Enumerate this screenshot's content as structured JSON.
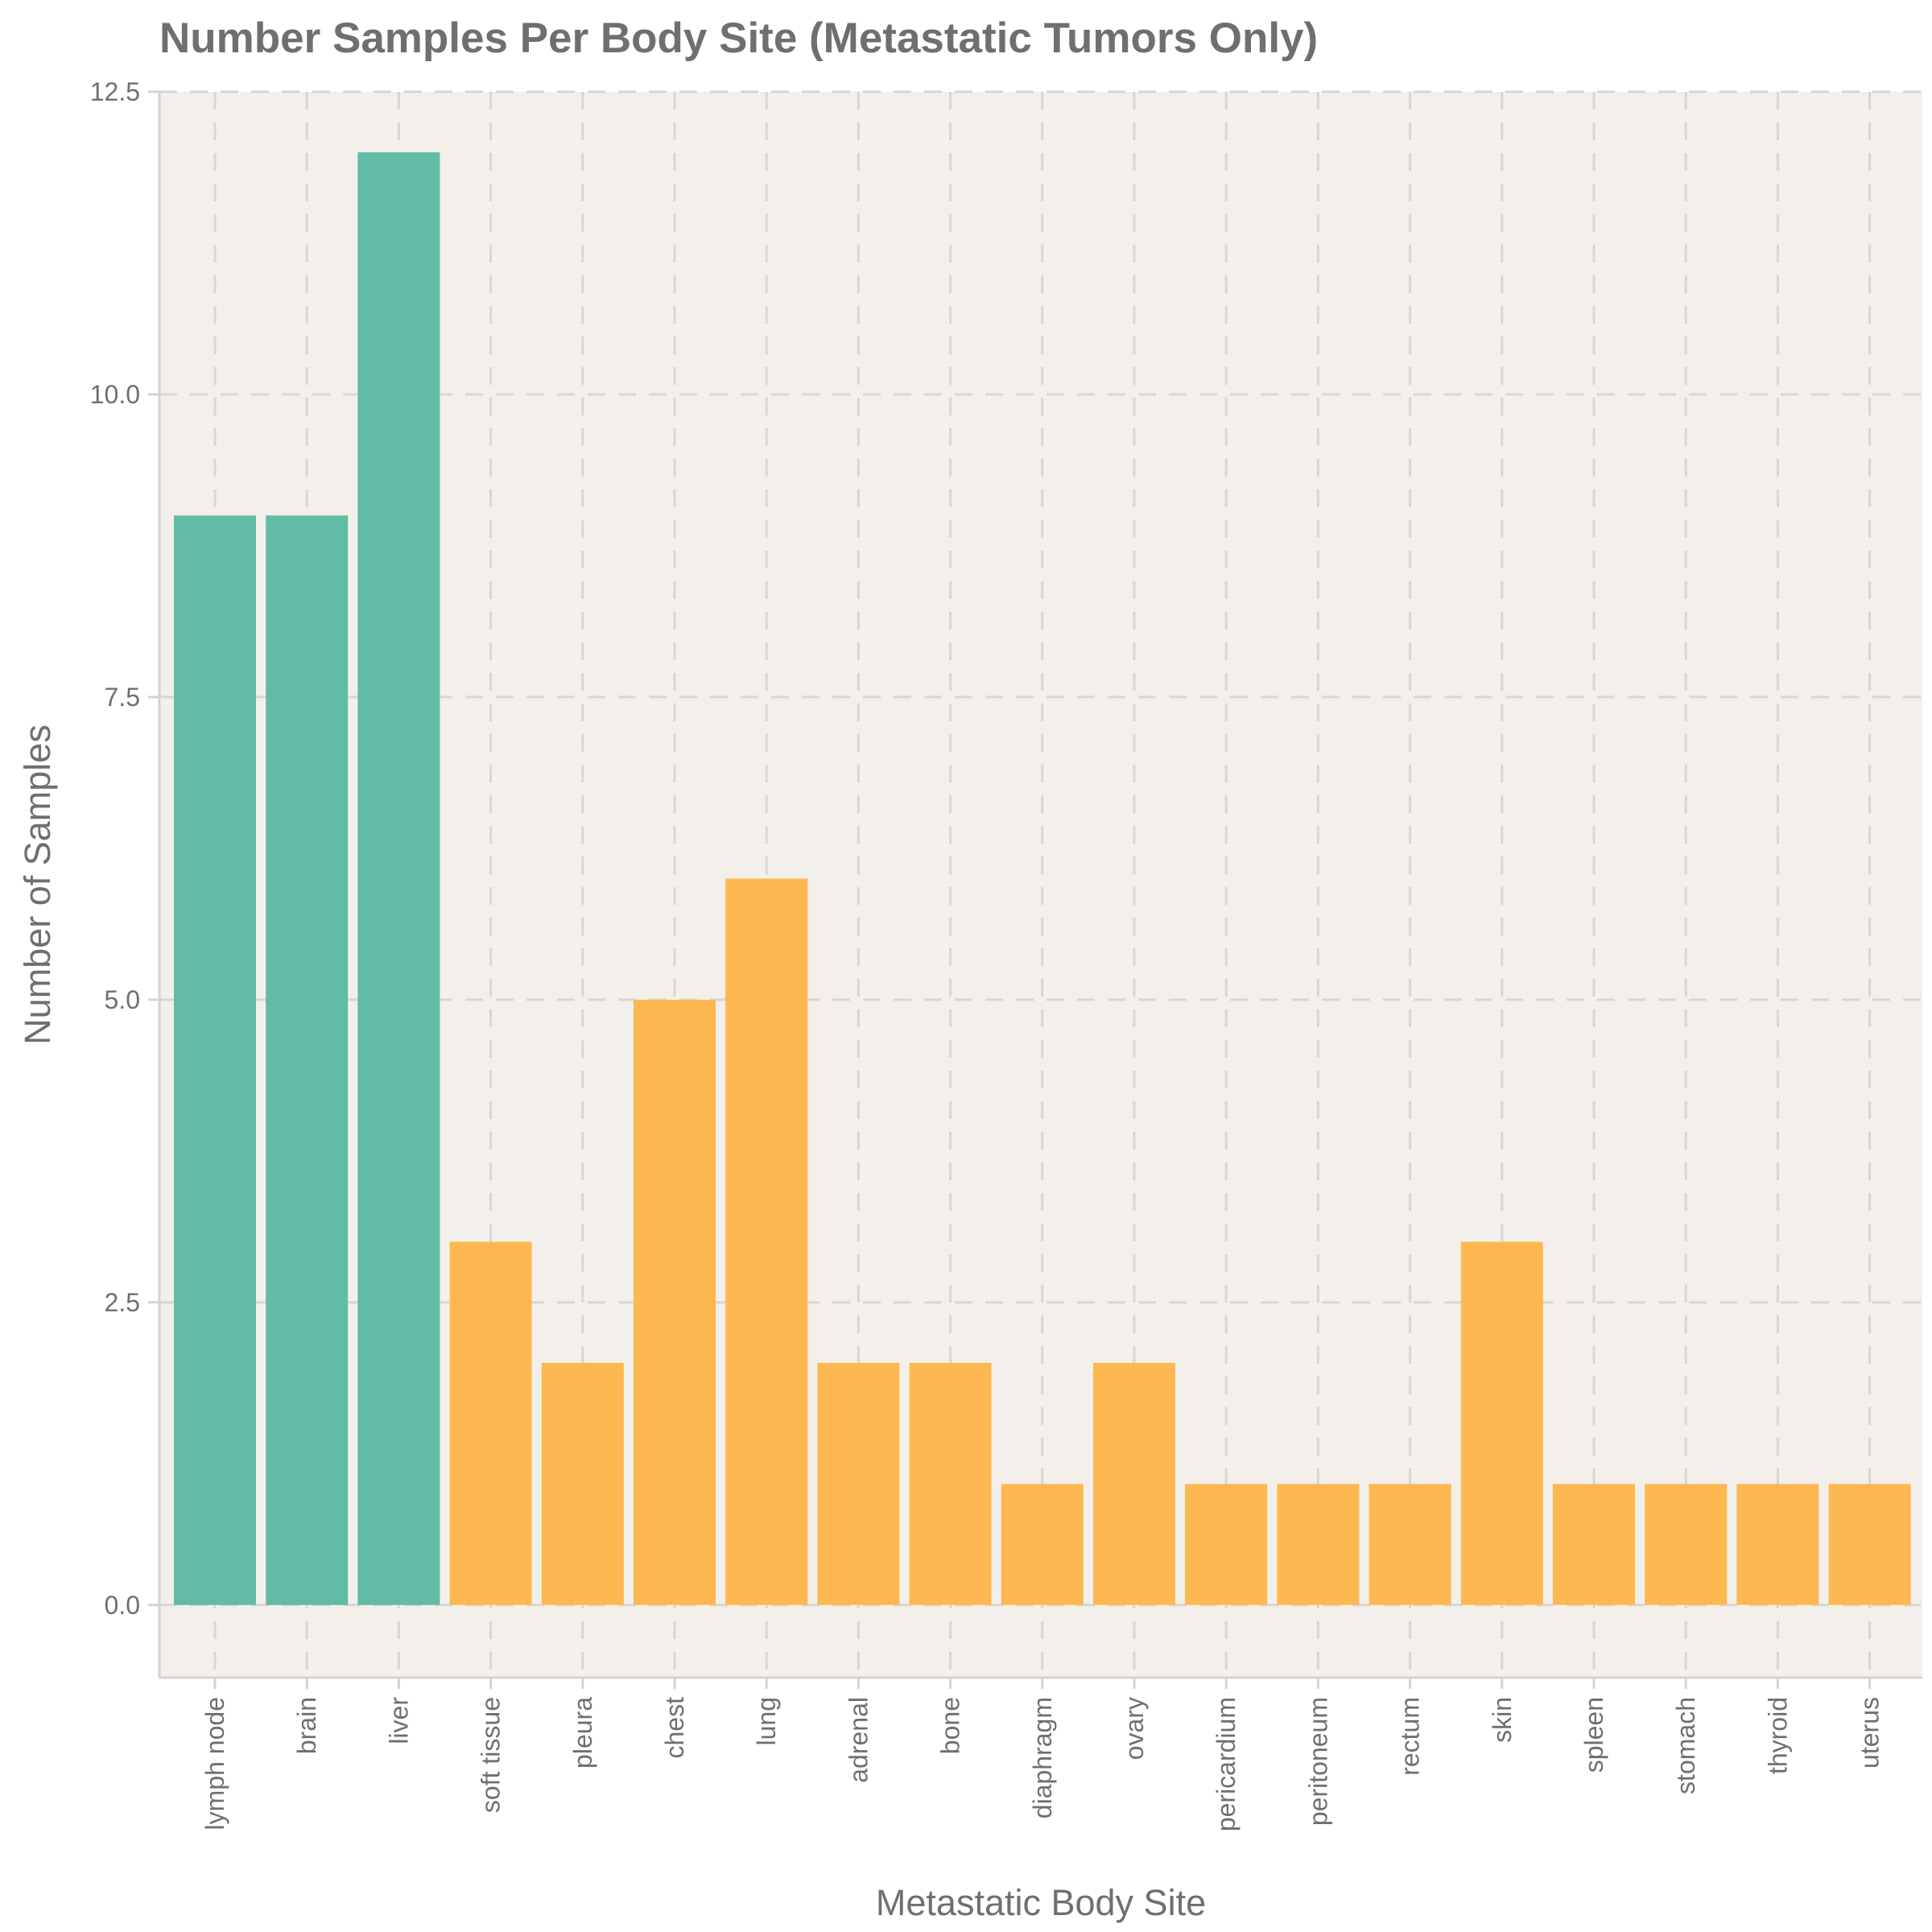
{
  "chart_data": {
    "type": "bar",
    "title": "Number Samples Per Body Site (Metastatic Tumors Only)",
    "xlabel": "Metastatic Body Site",
    "ylabel": "Number of Samples",
    "categories": [
      "lymph node",
      "brain",
      "liver",
      "soft tissue",
      "pleura",
      "chest",
      "lung",
      "adrenal",
      "bone",
      "diaphragm",
      "ovary",
      "pericardium",
      "peritoneum",
      "rectum",
      "skin",
      "spleen",
      "stomach",
      "thyroid",
      "uterus"
    ],
    "values": [
      9,
      9,
      12,
      3,
      2,
      5,
      6,
      2,
      2,
      1,
      2,
      1,
      1,
      1,
      3,
      1,
      1,
      1,
      1
    ],
    "bar_colors": [
      "#62bba5",
      "#62bba5",
      "#62bba5",
      "#fdb851",
      "#fdb851",
      "#fdb851",
      "#fdb851",
      "#fdb851",
      "#fdb851",
      "#fdb851",
      "#fdb851",
      "#fdb851",
      "#fdb851",
      "#fdb851",
      "#fdb851",
      "#fdb851",
      "#fdb851",
      "#fdb851",
      "#fdb851"
    ],
    "yticks": [
      0.0,
      2.5,
      5.0,
      7.5,
      10.0,
      12.5
    ],
    "ytick_labels": [
      "0.0",
      "2.5",
      "5.0",
      "7.5",
      "10.0",
      "12.5"
    ],
    "ylim": [
      -0.6,
      12.5
    ],
    "grid": true,
    "panel_background": "#f3efea"
  }
}
